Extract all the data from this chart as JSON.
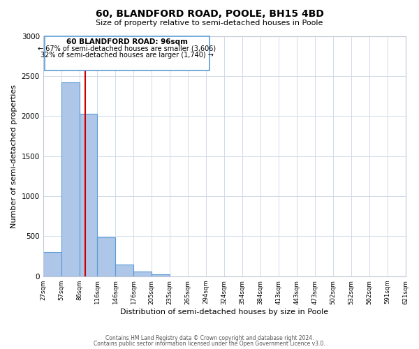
{
  "title": "60, BLANDFORD ROAD, POOLE, BH15 4BD",
  "subtitle": "Size of property relative to semi-detached houses in Poole",
  "xlabel": "Distribution of semi-detached houses by size in Poole",
  "ylabel": "Number of semi-detached properties",
  "bin_labels": [
    "27sqm",
    "57sqm",
    "86sqm",
    "116sqm",
    "146sqm",
    "176sqm",
    "205sqm",
    "235sqm",
    "265sqm",
    "294sqm",
    "324sqm",
    "354sqm",
    "384sqm",
    "413sqm",
    "443sqm",
    "473sqm",
    "502sqm",
    "532sqm",
    "562sqm",
    "591sqm",
    "621sqm"
  ],
  "bar_heights": [
    300,
    2420,
    2030,
    490,
    150,
    60,
    25,
    0,
    0,
    0,
    0,
    0,
    0,
    0,
    0,
    0,
    0,
    0,
    0,
    0
  ],
  "bar_color": "#aec6e8",
  "bar_edge_color": "#5b9bd5",
  "property_label": "60 BLANDFORD ROAD: 96sqm",
  "pct_smaller": 67,
  "n_smaller": 3606,
  "pct_larger": 32,
  "n_larger": 1740,
  "vline_color": "#cc0000",
  "annotation_box_edge": "#5b9bd5",
  "ylim": [
    0,
    3000
  ],
  "yticks": [
    0,
    500,
    1000,
    1500,
    2000,
    2500,
    3000
  ],
  "footer_line1": "Contains HM Land Registry data © Crown copyright and database right 2024.",
  "footer_line2": "Contains public sector information licensed under the Open Government Licence v3.0."
}
